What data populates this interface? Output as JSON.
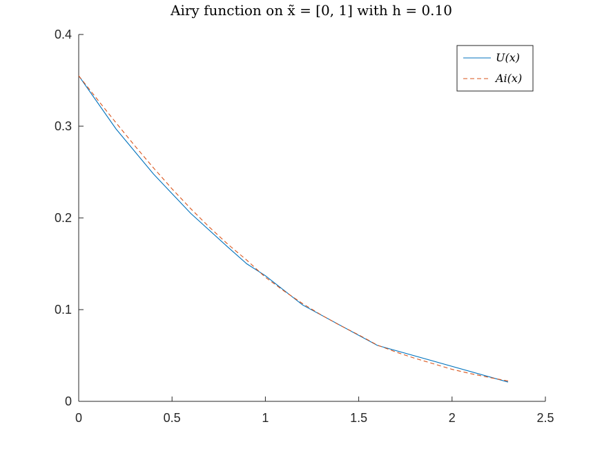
{
  "chart_data": {
    "type": "line",
    "title": "Airy function on x̃ = [0, 1] with h = 0.10",
    "xlabel": "",
    "ylabel": "",
    "xlim": [
      0,
      2.5
    ],
    "ylim": [
      0,
      0.4
    ],
    "xticks": [
      0,
      0.5,
      1,
      1.5,
      2,
      2.5
    ],
    "yticks": [
      0,
      0.1,
      0.2,
      0.3,
      0.4
    ],
    "xtick_labels": [
      "0",
      "0.5",
      "1",
      "1.5",
      "2",
      "2.5"
    ],
    "ytick_labels": [
      "0",
      "0.1",
      "0.2",
      "0.3",
      "0.4"
    ],
    "grid": false,
    "legend_position": "top-right",
    "series": [
      {
        "name": "U(x)",
        "color": "#0072BD",
        "dash": "solid",
        "x": [
          0,
          0.2,
          0.4,
          0.6,
          0.8,
          0.9,
          1.0,
          1.2,
          1.6,
          2.3
        ],
        "y": [
          0.355,
          0.297,
          0.248,
          0.205,
          0.168,
          0.15,
          0.137,
          0.105,
          0.061,
          0.021
        ]
      },
      {
        "name": "Ai(x)",
        "color": "#D95319",
        "dash": "dashed",
        "x": [
          0,
          0.1,
          0.2,
          0.3,
          0.4,
          0.5,
          0.6,
          0.7,
          0.8,
          0.9,
          1.0,
          1.1,
          1.2,
          1.3,
          1.4,
          1.5,
          1.6,
          1.7,
          1.8,
          1.9,
          2.0,
          2.1,
          2.2,
          2.3
        ],
        "y": [
          0.355,
          0.3292,
          0.3037,
          0.2788,
          0.2547,
          0.2317,
          0.2101,
          0.1899,
          0.1711,
          0.154,
          0.1353,
          0.1203,
          0.1065,
          0.0941,
          0.0828,
          0.0725,
          0.0613,
          0.0537,
          0.047,
          0.041,
          0.0349,
          0.0302,
          0.026,
          0.0222
        ]
      }
    ]
  }
}
